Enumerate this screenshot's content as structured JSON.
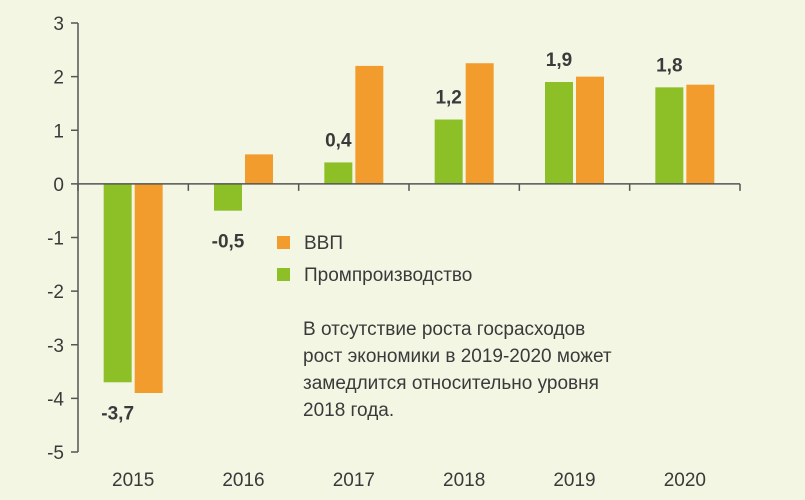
{
  "chart_data": {
    "type": "bar",
    "categories": [
      "2015",
      "2016",
      "2017",
      "2018",
      "2019",
      "2020"
    ],
    "series": [
      {
        "name": "Промпроизводство",
        "color": "#8cc026",
        "values": [
          -3.7,
          -0.5,
          0.4,
          1.2,
          1.9,
          1.8
        ]
      },
      {
        "name": "ВВП",
        "color": "#f39c2e",
        "values": [
          -3.9,
          0.55,
          2.2,
          2.25,
          2.0,
          1.85
        ]
      }
    ],
    "data_labels": [
      "-3,7",
      "-0,5",
      "0,4",
      "1,2",
      "1,9",
      "1,8"
    ],
    "yticks": [
      "3",
      "2",
      "1",
      "0",
      "-1",
      "-2",
      "-3",
      "-4",
      "-5"
    ],
    "ylim": [
      -5,
      3
    ],
    "grid": false,
    "legend_position": "center-right",
    "annotation": [
      "В отсутствие роста госрасходов",
      "рост экономики в 2019-2020 может",
      "замедлится относительно уровня",
      "2018 года."
    ]
  }
}
